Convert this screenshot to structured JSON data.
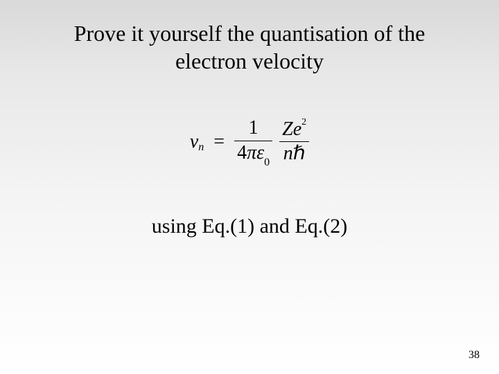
{
  "slide": {
    "title_line1": "Prove it yourself the quantisation of the",
    "title_line2": "electron velocity",
    "subtext": "using Eq.(1) and Eq.(2)",
    "page_number": "38",
    "background_gradient": {
      "from": "#d9d9d9",
      "to": "#ffffff"
    },
    "text_color": "#000000",
    "font_family": "Times New Roman",
    "title_fontsize_pt": 24,
    "body_fontsize_pt": 22
  },
  "equation": {
    "type": "formula",
    "lhs": {
      "var": "v",
      "sub": "n"
    },
    "rhs": {
      "factor1": {
        "num": "1",
        "den_left": "4",
        "den_pi": "π",
        "den_eps": "ε",
        "den_eps_sub": "0"
      },
      "factor2": {
        "num_Z": "Z",
        "num_e": "e",
        "num_e_sup": "2",
        "den_n": "n",
        "den_hbar": "ℏ"
      }
    },
    "eq_sign": "=",
    "fontsize_pt": 21,
    "color": "#000000"
  }
}
